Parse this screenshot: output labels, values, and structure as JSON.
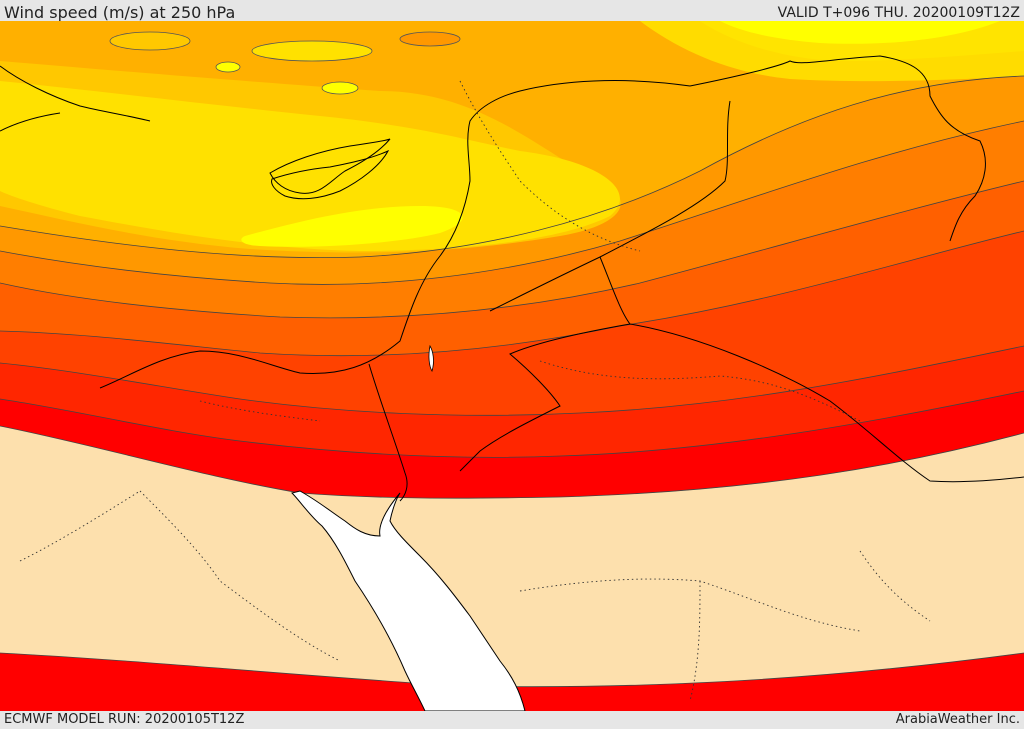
{
  "header": {
    "title": "Wind speed (m/s) at 250 hPa",
    "valid": "VALID T+096 THU. 20200109T12Z"
  },
  "footer": {
    "model_run": "ECMWF MODEL RUN: 20200105T12Z",
    "credit": "ArabiaWeather Inc."
  },
  "colors": {
    "background_band": "#fde0ad",
    "band_1": "#ffff00",
    "band_2": "#ffe100",
    "band_3": "#ffc800",
    "band_4": "#ffb000",
    "band_5": "#ff9800",
    "band_6": "#ff7e00",
    "band_7": "#ff6000",
    "band_8": "#ff4200",
    "band_9": "#ff2600",
    "band_10": "#ff0000",
    "water": "#ffffff",
    "coastline": "#000000"
  }
}
